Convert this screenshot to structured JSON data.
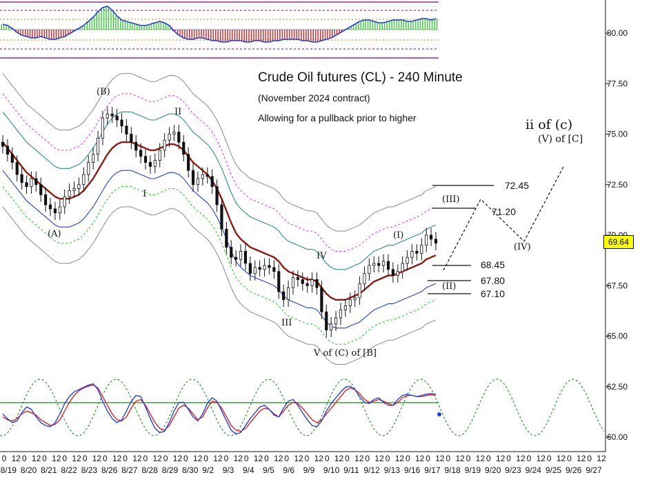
{
  "title": "Crude Oil futures (CL) - 240 Minute",
  "subtitle": "(November 2024 contract)",
  "note": "Allowing for a pullback prior to higher",
  "current_price": "69.64",
  "wave_labels": {
    "A": "(A)",
    "B": "(B)",
    "I": "I",
    "II": "II",
    "III": "III",
    "IV": "IV",
    "V": "V of (C) of [B]",
    "wI": "(I)",
    "wII": "(II)",
    "wIII": "(III)",
    "wIV": "(IV)",
    "target_main": "ii of (c)",
    "target_sub": "(V) of [C]"
  },
  "levels": [
    "72.45",
    "71.20",
    "68.45",
    "67.80",
    "67.10"
  ],
  "colors": {
    "candle": "#111111",
    "ma": "#8b1a10",
    "teal_band": "#2e8b8b",
    "blue_band": "#1f3fd6",
    "magenta_band": "#e040e0",
    "green_band": "#22cc22",
    "gray_band": "#888888",
    "osc_up": "#33cc33",
    "osc_down": "#cc2222",
    "stoch_red": "#dd2222",
    "stoch_blue": "#2244dd",
    "cycle_green": "#1a8a1a",
    "price_box": "#ffff00"
  },
  "chart_data": {
    "type": "candlestick",
    "title": "Crude Oil futures (CL) - 240 Minute",
    "y_ticks": [
      "80.00",
      "77.50",
      "75.00",
      "72.50",
      "70.00",
      "67.50",
      "65.00",
      "62.50",
      "60.00"
    ],
    "ylim": [
      59.5,
      81.5
    ],
    "x_dates": [
      "8/19",
      "8/20",
      "8/21",
      "8/22",
      "8/23",
      "8/26",
      "8/27",
      "8/28",
      "8/29",
      "8/30",
      "9/2",
      "9/3",
      "9/4",
      "9/5",
      "9/6",
      "9/9",
      "9/10",
      "9/11",
      "9/12",
      "9/13",
      "9/16",
      "9/17",
      "9/18",
      "9/19",
      "9/20",
      "9/23",
      "9/24",
      "9/25",
      "9/26",
      "9/27"
    ],
    "x_hour_labels": [
      "0",
      "12"
    ],
    "price_close": [
      74.4,
      74.0,
      73.6,
      73.0,
      72.6,
      72.4,
      72.8,
      72.5,
      72.0,
      71.5,
      71.3,
      71.1,
      71.4,
      71.9,
      72.2,
      72.3,
      72.5,
      73.0,
      73.6,
      74.0,
      74.8,
      75.8,
      76.0,
      75.9,
      75.7,
      75.4,
      75.0,
      74.6,
      74.2,
      73.9,
      73.6,
      73.4,
      73.7,
      74.2,
      74.7,
      75.0,
      75.1,
      74.6,
      74.0,
      73.2,
      72.5,
      72.8,
      73.0,
      72.9,
      72.4,
      71.5,
      70.3,
      69.4,
      68.9,
      68.8,
      69.2,
      68.6,
      68.1,
      68.4,
      68.3,
      68.5,
      68.4,
      68.2,
      67.2,
      66.8,
      67.4,
      67.9,
      67.8,
      67.6,
      67.5,
      67.8,
      67.4,
      66.2,
      65.3,
      65.6,
      65.9,
      66.3,
      66.5,
      66.8,
      66.9,
      67.6,
      68.1,
      68.5,
      68.6,
      68.5,
      68.7,
      68.3,
      68.0,
      68.2,
      68.6,
      68.9,
      69.2,
      69.1,
      69.5,
      70.0,
      69.8,
      69.6
    ],
    "price_ma": [
      74.6,
      74.3,
      74.0,
      73.7,
      73.4,
      73.1,
      72.9,
      72.7,
      72.5,
      72.3,
      72.1,
      71.9,
      71.8,
      71.8,
      71.8,
      71.9,
      72.0,
      72.2,
      72.5,
      72.8,
      73.2,
      73.6,
      74.0,
      74.3,
      74.5,
      74.6,
      74.6,
      74.6,
      74.5,
      74.4,
      74.3,
      74.2,
      74.2,
      74.3,
      74.4,
      74.5,
      74.5,
      74.4,
      74.2,
      73.9,
      73.6,
      73.4,
      73.2,
      73.0,
      72.7,
      72.3,
      71.8,
      71.2,
      70.6,
      70.1,
      69.8,
      69.6,
      69.4,
      69.3,
      69.2,
      69.1,
      69.0,
      68.9,
      68.7,
      68.4,
      68.2,
      68.1,
      68.0,
      67.9,
      67.8,
      67.8,
      67.7,
      67.4,
      67.1,
      66.9,
      66.8,
      66.8,
      66.8,
      66.9,
      67.0,
      67.1,
      67.3,
      67.5,
      67.7,
      67.8,
      67.9,
      68.0,
      68.0,
      68.1,
      68.2,
      68.3,
      68.4,
      68.5,
      68.6,
      68.8,
      68.9,
      69.0
    ],
    "band_offsets": {
      "gray_outer": 3.4,
      "magenta": 2.4,
      "teal": 1.5,
      "blue": -1.4,
      "green": -2.2,
      "gray_inner": -3.2
    },
    "projection": [
      {
        "label": "(III)",
        "price": 72.45
      },
      {
        "label": "(IV)",
        "price": 70.0
      },
      {
        "label": "ii of (c)",
        "price": 73.3
      }
    ],
    "oscillator_histogram": [
      0.4,
      0.3,
      0.1,
      -0.2,
      -0.4,
      -0.5,
      -0.6,
      -0.6,
      -0.5,
      -0.6,
      -0.7,
      -0.7,
      -0.6,
      -0.5,
      -0.3,
      -0.1,
      0.1,
      0.3,
      0.6,
      0.9,
      1.3,
      1.6,
      1.7,
      1.4,
      1.0,
      0.7,
      0.6,
      0.5,
      0.4,
      0.3,
      0.3,
      0.4,
      0.5,
      0.6,
      0.5,
      0.3,
      -0.1,
      -0.4,
      -0.6,
      -0.7,
      -0.7,
      -0.6,
      -0.6,
      -0.7,
      -0.8,
      -0.8,
      -0.9,
      -0.9,
      -0.8,
      -0.8,
      -0.8,
      -0.9,
      -0.9,
      -0.8,
      -0.8,
      -0.9,
      -0.9,
      -0.8,
      -0.8,
      -0.7,
      -0.7,
      -0.7,
      -0.7,
      -0.8,
      -0.8,
      -0.9,
      -0.9,
      -0.8,
      -0.7,
      -0.6,
      -0.4,
      -0.2,
      0.0,
      0.2,
      0.4,
      0.6,
      0.7,
      0.7,
      0.6,
      0.5,
      0.5,
      0.6,
      0.7,
      0.7,
      0.7,
      0.6,
      0.6,
      0.7,
      0.8,
      0.8,
      0.7,
      0.8
    ],
    "stoch_red": [
      0.35,
      0.3,
      0.28,
      0.32,
      0.4,
      0.45,
      0.42,
      0.38,
      0.3,
      0.25,
      0.2,
      0.22,
      0.3,
      0.45,
      0.6,
      0.72,
      0.8,
      0.85,
      0.88,
      0.9,
      0.85,
      0.7,
      0.55,
      0.4,
      0.3,
      0.28,
      0.35,
      0.5,
      0.62,
      0.65,
      0.55,
      0.4,
      0.25,
      0.15,
      0.12,
      0.2,
      0.35,
      0.5,
      0.55,
      0.5,
      0.4,
      0.3,
      0.35,
      0.5,
      0.62,
      0.6,
      0.5,
      0.35,
      0.2,
      0.12,
      0.1,
      0.15,
      0.25,
      0.35,
      0.45,
      0.5,
      0.48,
      0.4,
      0.35,
      0.45,
      0.55,
      0.6,
      0.58,
      0.5,
      0.4,
      0.3,
      0.25,
      0.3,
      0.4,
      0.5,
      0.6,
      0.7,
      0.8,
      0.85,
      0.82,
      0.75,
      0.65,
      0.6,
      0.62,
      0.65,
      0.62,
      0.58,
      0.55,
      0.6,
      0.68,
      0.72,
      0.72,
      0.7,
      0.7,
      0.72,
      0.73,
      0.72
    ],
    "stoch_blue": [
      0.4,
      0.32,
      0.25,
      0.28,
      0.42,
      0.52,
      0.48,
      0.35,
      0.25,
      0.2,
      0.18,
      0.25,
      0.4,
      0.58,
      0.7,
      0.78,
      0.82,
      0.86,
      0.9,
      0.92,
      0.82,
      0.62,
      0.45,
      0.32,
      0.25,
      0.3,
      0.45,
      0.62,
      0.72,
      0.7,
      0.52,
      0.32,
      0.15,
      0.08,
      0.1,
      0.25,
      0.45,
      0.6,
      0.6,
      0.48,
      0.35,
      0.28,
      0.4,
      0.58,
      0.68,
      0.62,
      0.45,
      0.28,
      0.12,
      0.05,
      0.08,
      0.2,
      0.32,
      0.42,
      0.52,
      0.55,
      0.48,
      0.38,
      0.35,
      0.5,
      0.62,
      0.65,
      0.55,
      0.42,
      0.3,
      0.2,
      0.18,
      0.28,
      0.45,
      0.58,
      0.68,
      0.78,
      0.86,
      0.88,
      0.82,
      0.7,
      0.6,
      0.58,
      0.65,
      0.68,
      0.6,
      0.55,
      0.55,
      0.65,
      0.72,
      0.74,
      0.72,
      0.7,
      0.72,
      0.74,
      0.75,
      0.74
    ],
    "cycle_period_bars": 16
  }
}
